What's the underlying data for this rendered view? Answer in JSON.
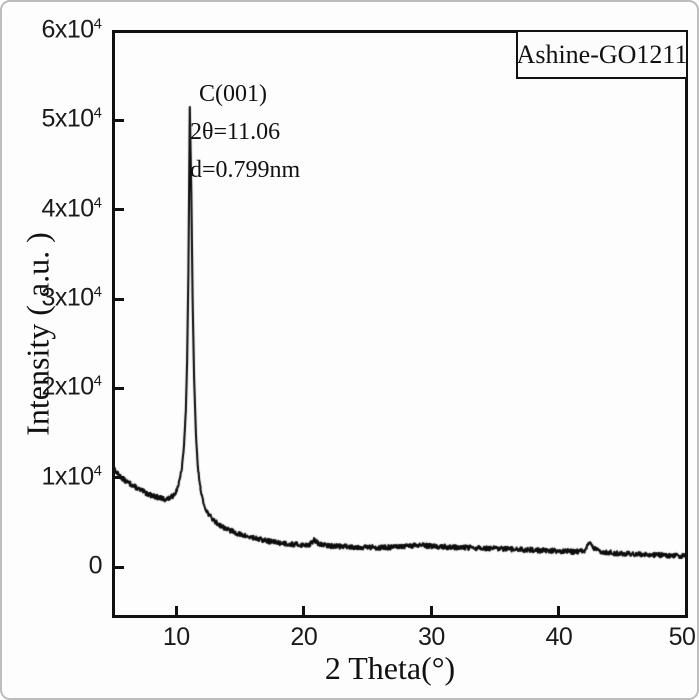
{
  "colors": {
    "curve": "#0d0d0d",
    "axis": "#111111",
    "frame_border": "#bdbdbd",
    "background": "#fdfdfd",
    "text": "#111111"
  },
  "chart_data": {
    "type": "line",
    "title": "",
    "xlabel": "2 Theta(°)",
    "ylabel": "Intensity ( a.u. )",
    "xlim": [
      5,
      50
    ],
    "ylim": [
      -5500,
      60000
    ],
    "grid": false,
    "xticks": [
      {
        "value": 10,
        "label": "10"
      },
      {
        "value": 20,
        "label": "20"
      },
      {
        "value": 30,
        "label": "30"
      },
      {
        "value": 40,
        "label": "40"
      },
      {
        "value": 50,
        "label": "50"
      }
    ],
    "yticks": [
      {
        "value": 0,
        "label": "0"
      },
      {
        "value": 10000,
        "label": "1x10^4"
      },
      {
        "value": 20000,
        "label": "2x10^4"
      },
      {
        "value": 30000,
        "label": "3x10^4"
      },
      {
        "value": 40000,
        "label": "4x10^4"
      },
      {
        "value": 50000,
        "label": "5x10^4"
      },
      {
        "value": 60000,
        "label": "6x10^4"
      }
    ],
    "legend": {
      "label": "Ashine-GO1211",
      "position": "top-right"
    },
    "annotations": {
      "line1": "C(001)",
      "line2": "2θ=11.06",
      "line3": "d=0.799nm"
    },
    "peak": {
      "hkl": "C(001)",
      "two_theta_deg": 11.06,
      "d_spacing_nm": 0.799,
      "max_intensity": 51500
    },
    "noise": {
      "amplitude": 270,
      "seed": 13
    },
    "series": [
      {
        "name": "Ashine-GO1211",
        "points": [
          [
            5.0,
            11200
          ],
          [
            5.3,
            10600
          ],
          [
            5.6,
            10150
          ],
          [
            6.0,
            9650
          ],
          [
            6.4,
            9300
          ],
          [
            6.8,
            8950
          ],
          [
            7.2,
            8600
          ],
          [
            7.6,
            8300
          ],
          [
            8.0,
            8050
          ],
          [
            8.4,
            7850
          ],
          [
            8.8,
            7700
          ],
          [
            9.1,
            7600
          ],
          [
            9.4,
            7650
          ],
          [
            9.7,
            7900
          ],
          [
            10.0,
            8500
          ],
          [
            10.25,
            9600
          ],
          [
            10.45,
            11200
          ],
          [
            10.6,
            13500
          ],
          [
            10.75,
            17500
          ],
          [
            10.85,
            23000
          ],
          [
            10.95,
            33000
          ],
          [
            11.06,
            51500
          ],
          [
            11.18,
            42000
          ],
          [
            11.28,
            30000
          ],
          [
            11.4,
            21000
          ],
          [
            11.55,
            14500
          ],
          [
            11.7,
            11000
          ],
          [
            11.9,
            8800
          ],
          [
            12.1,
            7300
          ],
          [
            12.4,
            6200
          ],
          [
            12.8,
            5400
          ],
          [
            13.2,
            4900
          ],
          [
            13.7,
            4450
          ],
          [
            14.2,
            4100
          ],
          [
            15.0,
            3650
          ],
          [
            16.0,
            3250
          ],
          [
            17.0,
            2950
          ],
          [
            18.0,
            2720
          ],
          [
            19.0,
            2560
          ],
          [
            20.0,
            2460
          ],
          [
            20.5,
            2550
          ],
          [
            20.8,
            3050
          ],
          [
            21.1,
            2650
          ],
          [
            21.5,
            2450
          ],
          [
            22.2,
            2350
          ],
          [
            23.0,
            2300
          ],
          [
            24.0,
            2250
          ],
          [
            25.0,
            2200
          ],
          [
            26.0,
            2180
          ],
          [
            27.0,
            2200
          ],
          [
            28.0,
            2300
          ],
          [
            28.8,
            2420
          ],
          [
            29.5,
            2380
          ],
          [
            30.5,
            2280
          ],
          [
            31.5,
            2220
          ],
          [
            33.0,
            2150
          ],
          [
            34.5,
            2080
          ],
          [
            36.0,
            2000
          ],
          [
            37.5,
            1920
          ],
          [
            39.0,
            1840
          ],
          [
            40.5,
            1760
          ],
          [
            41.5,
            1720
          ],
          [
            42.0,
            1780
          ],
          [
            42.4,
            2800
          ],
          [
            42.75,
            2050
          ],
          [
            43.2,
            1750
          ],
          [
            44.0,
            1600
          ],
          [
            45.0,
            1500
          ],
          [
            46.5,
            1420
          ],
          [
            48.0,
            1330
          ],
          [
            49.0,
            1270
          ],
          [
            50.0,
            1220
          ]
        ]
      }
    ]
  }
}
